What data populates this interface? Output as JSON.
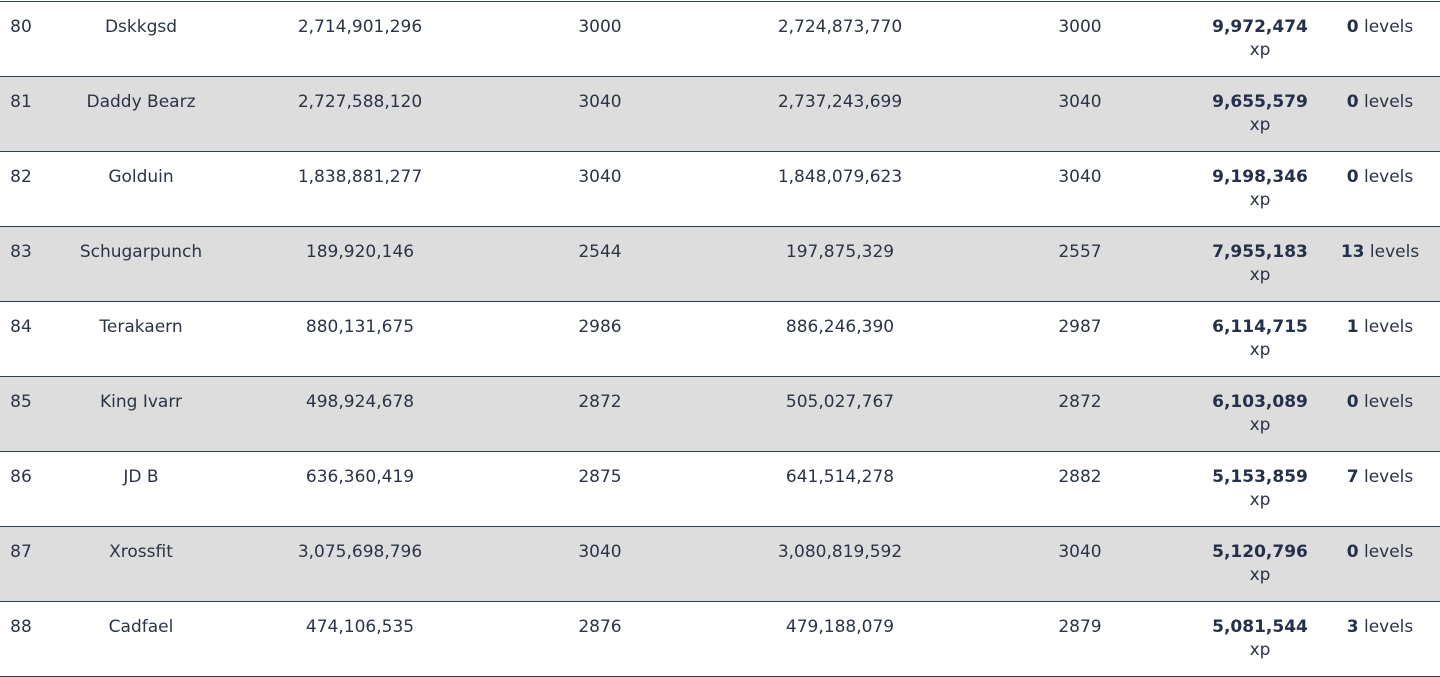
{
  "rows": [
    {
      "rank": "80",
      "name": "Dskkgsd",
      "value_start": "2,714,901,296",
      "level_start": "3000",
      "value_end": "2,724,873,770",
      "level_end": "3000",
      "gain": "9,972,474",
      "gain_unit": "xp",
      "levels": "0",
      "levels_unit": "levels"
    },
    {
      "rank": "81",
      "name": "Daddy Bearz",
      "value_start": "2,727,588,120",
      "level_start": "3040",
      "value_end": "2,737,243,699",
      "level_end": "3040",
      "gain": "9,655,579",
      "gain_unit": "xp",
      "levels": "0",
      "levels_unit": "levels"
    },
    {
      "rank": "82",
      "name": "Golduin",
      "value_start": "1,838,881,277",
      "level_start": "3040",
      "value_end": "1,848,079,623",
      "level_end": "3040",
      "gain": "9,198,346",
      "gain_unit": "xp",
      "levels": "0",
      "levels_unit": "levels"
    },
    {
      "rank": "83",
      "name": "Schugarpunch",
      "value_start": "189,920,146",
      "level_start": "2544",
      "value_end": "197,875,329",
      "level_end": "2557",
      "gain": "7,955,183",
      "gain_unit": "xp",
      "levels": "13",
      "levels_unit": "levels"
    },
    {
      "rank": "84",
      "name": "Terakaern",
      "value_start": "880,131,675",
      "level_start": "2986",
      "value_end": "886,246,390",
      "level_end": "2987",
      "gain": "6,114,715",
      "gain_unit": "xp",
      "levels": "1",
      "levels_unit": "levels"
    },
    {
      "rank": "85",
      "name": "King Ivarr",
      "value_start": "498,924,678",
      "level_start": "2872",
      "value_end": "505,027,767",
      "level_end": "2872",
      "gain": "6,103,089",
      "gain_unit": "xp",
      "levels": "0",
      "levels_unit": "levels"
    },
    {
      "rank": "86",
      "name": "JD B",
      "value_start": "636,360,419",
      "level_start": "2875",
      "value_end": "641,514,278",
      "level_end": "2882",
      "gain": "5,153,859",
      "gain_unit": "xp",
      "levels": "7",
      "levels_unit": "levels"
    },
    {
      "rank": "87",
      "name": "Xrossfit",
      "value_start": "3,075,698,796",
      "level_start": "3040",
      "value_end": "3,080,819,592",
      "level_end": "3040",
      "gain": "5,120,796",
      "gain_unit": "xp",
      "levels": "0",
      "levels_unit": "levels"
    },
    {
      "rank": "88",
      "name": "Cadfael",
      "value_start": "474,106,535",
      "level_start": "2876",
      "value_end": "479,188,079",
      "level_end": "2879",
      "gain": "5,081,544",
      "gain_unit": "xp",
      "levels": "3",
      "levels_unit": "levels"
    }
  ],
  "colors": {
    "text": "#2b3445",
    "row_alt_bg": "#dddddd",
    "divider": "#2f3b55"
  }
}
